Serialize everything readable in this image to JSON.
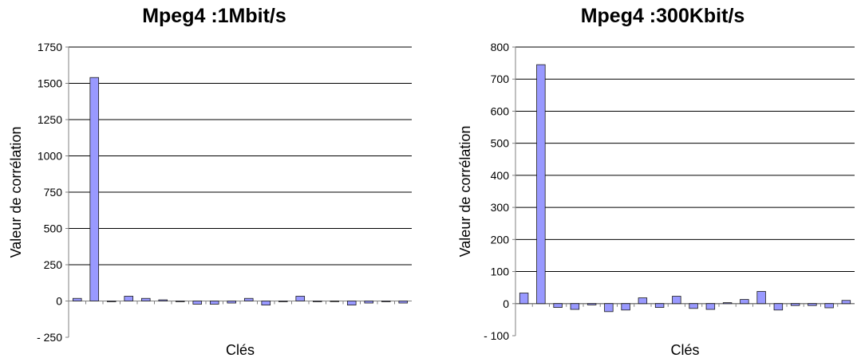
{
  "chart_data": [
    {
      "type": "bar",
      "title": "Mpeg4 :1Mbit/s",
      "xlabel": "Clés",
      "ylabel": "Valeur de corrélation",
      "ylim": [
        -250,
        1750
      ],
      "yticks": [
        -250,
        0,
        250,
        500,
        750,
        1000,
        1250,
        1500,
        1750
      ],
      "ytick_labels": [
        "- 250",
        "0",
        "250",
        "500",
        "750",
        "1000",
        "1250",
        "1500",
        "1750"
      ],
      "grid": true,
      "values": [
        18,
        1540,
        -5,
        33,
        18,
        8,
        -5,
        -22,
        -22,
        -14,
        18,
        -28,
        -5,
        33,
        -5,
        0,
        -28,
        -14,
        -5,
        -14
      ]
    },
    {
      "type": "bar",
      "title": "Mpeg4 :300Kbit/s",
      "xlabel": "Clés",
      "ylabel": "Valeur de corrélation",
      "ylim": [
        -100,
        800
      ],
      "yticks": [
        -100,
        0,
        100,
        200,
        300,
        400,
        500,
        600,
        700,
        800
      ],
      "ytick_labels": [
        "- 100",
        "0",
        "100",
        "200",
        "300",
        "400",
        "500",
        "600",
        "700",
        "800"
      ],
      "grid": true,
      "values": [
        33,
        745,
        -12,
        -18,
        -4,
        -25,
        -20,
        18,
        -12,
        23,
        -15,
        -18,
        3,
        13,
        38,
        -20,
        -6,
        -6,
        -13,
        10
      ]
    }
  ],
  "colors": {
    "bar_fill": "#9999ff",
    "bar_stroke": "#1a1a1a",
    "grid": "#000000",
    "axis": "#808080"
  }
}
